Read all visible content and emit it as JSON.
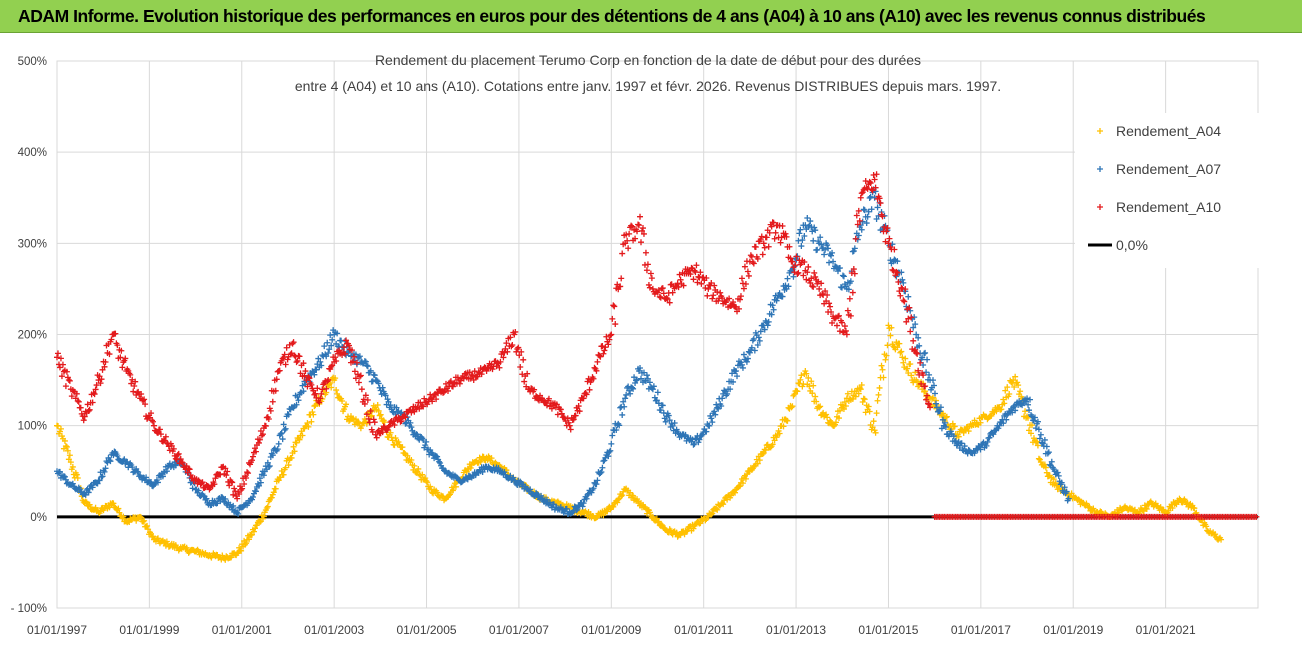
{
  "banner": {
    "title": "ADAM Informe. Evolution historique des performances en euros pour des détentions de 4 ans (A04) à 10 ans (A10) avec les revenus connus distribués"
  },
  "colors": {
    "banner_bg": "#92d050",
    "A04": "#ffc000",
    "A07": "#2e75b6",
    "A10": "#e31a1c",
    "zero_line": "#000000",
    "grid": "#d9d9d9"
  },
  "chart_data": {
    "type": "scatter",
    "title_line1": "Rendement du placement Terumo Corp en fonction de la date de début pour des durées",
    "title_line2": "entre 4 (A04) et 10 ans (A10). Cotations entre janv. 1997 et févr.  2026. Revenus DISTRIBUES depuis mars. 1997.",
    "xlabel": "",
    "ylabel": "",
    "xlim": [
      1997.0,
      2023.0
    ],
    "ylim": [
      -100,
      500
    ],
    "y_ticks": [
      -100,
      0,
      100,
      200,
      300,
      400,
      500
    ],
    "y_tick_labels": [
      "- 100%",
      "0%",
      "100%",
      "200%",
      "300%",
      "400%",
      "500%"
    ],
    "x_ticks": [
      1997,
      1999,
      2001,
      2003,
      2005,
      2007,
      2009,
      2011,
      2013,
      2015,
      2017,
      2019,
      2021
    ],
    "x_tick_labels": [
      "01/01/1997",
      "01/01/1999",
      "01/01/2001",
      "01/01/2003",
      "01/01/2005",
      "01/01/2007",
      "01/01/2009",
      "01/01/2011",
      "01/01/2013",
      "01/01/2015",
      "01/01/2017",
      "01/01/2019",
      "01/01/2021"
    ],
    "legend_position": "top-right",
    "legend": [
      {
        "key": "A04",
        "label": "Rendement_A04",
        "marker": "cross"
      },
      {
        "key": "A07",
        "label": "Rendement_A07",
        "marker": "cross"
      },
      {
        "key": "A10",
        "label": "Rendement_A10",
        "marker": "cross"
      },
      {
        "key": "zero",
        "label": "0,0%",
        "marker": "line"
      }
    ],
    "zero_line": {
      "label": "0,0%",
      "value": 0
    },
    "series": [
      {
        "name": "Rendement_A04",
        "key": "A04",
        "x": [
          1997.0,
          1997.3,
          1997.6,
          1997.9,
          1998.2,
          1998.5,
          1998.8,
          1999.1,
          1999.4,
          1999.7,
          2000.0,
          2000.3,
          2000.6,
          2000.9,
          2001.2,
          2001.5,
          2001.8,
          2002.1,
          2002.4,
          2002.7,
          2003.0,
          2003.3,
          2003.6,
          2003.9,
          2004.2,
          2004.5,
          2004.8,
          2005.1,
          2005.4,
          2005.7,
          2006.0,
          2006.3,
          2006.6,
          2006.9,
          2007.2,
          2007.5,
          2007.8,
          2008.1,
          2008.4,
          2008.7,
          2009.0,
          2009.3,
          2009.6,
          2009.9,
          2010.2,
          2010.5,
          2010.8,
          2011.1,
          2011.4,
          2011.7,
          2012.0,
          2012.3,
          2012.6,
          2012.9,
          2013.2,
          2013.5,
          2013.8,
          2014.1,
          2014.4,
          2014.7,
          2015.0,
          2015.3,
          2015.6,
          2015.9,
          2016.2,
          2016.5,
          2016.8,
          2017.1,
          2017.4,
          2017.7,
          2018.0,
          2018.3,
          2018.6,
          2018.9,
          2019.2,
          2019.5,
          2019.8,
          2020.1,
          2020.4,
          2020.7,
          2021.0,
          2021.3,
          2021.6,
          2021.9,
          2022.2
        ],
        "values": [
          100,
          60,
          15,
          5,
          15,
          -5,
          0,
          -25,
          -30,
          -35,
          -38,
          -42,
          -45,
          -40,
          -20,
          5,
          40,
          70,
          100,
          130,
          150,
          110,
          100,
          120,
          90,
          70,
          50,
          30,
          20,
          40,
          60,
          65,
          55,
          40,
          30,
          20,
          15,
          10,
          5,
          0,
          10,
          30,
          15,
          0,
          -15,
          -20,
          -10,
          0,
          15,
          30,
          50,
          70,
          90,
          120,
          160,
          120,
          100,
          130,
          140,
          95,
          210,
          175,
          150,
          130,
          110,
          90,
          100,
          110,
          120,
          150,
          110,
          60,
          35,
          25,
          15,
          5,
          0,
          10,
          5,
          15,
          5,
          20,
          10,
          -15,
          -25
        ]
      },
      {
        "name": "Rendement_A07",
        "key": "A07",
        "x": [
          1997.0,
          1997.3,
          1997.6,
          1997.9,
          1998.2,
          1998.5,
          1998.8,
          1999.1,
          1999.4,
          1999.7,
          2000.0,
          2000.3,
          2000.6,
          2000.9,
          2001.2,
          2001.5,
          2001.8,
          2002.1,
          2002.4,
          2002.7,
          2003.0,
          2003.3,
          2003.6,
          2003.9,
          2004.2,
          2004.5,
          2004.8,
          2005.1,
          2005.4,
          2005.7,
          2006.0,
          2006.3,
          2006.6,
          2006.9,
          2007.2,
          2007.5,
          2007.8,
          2008.1,
          2008.4,
          2008.7,
          2009.0,
          2009.3,
          2009.6,
          2009.9,
          2010.2,
          2010.5,
          2010.8,
          2011.1,
          2011.4,
          2011.7,
          2012.0,
          2012.3,
          2012.6,
          2012.9,
          2013.2,
          2013.5,
          2013.8,
          2014.1,
          2014.4,
          2014.7,
          2015.0,
          2015.3,
          2015.6,
          2015.9,
          2016.2,
          2016.5,
          2016.8,
          2017.1,
          2017.4,
          2017.7,
          2018.0,
          2018.3,
          2018.6,
          2018.9
        ],
        "values": [
          50,
          35,
          25,
          40,
          70,
          60,
          45,
          35,
          55,
          60,
          30,
          15,
          20,
          5,
          20,
          50,
          80,
          120,
          150,
          170,
          200,
          180,
          170,
          150,
          120,
          110,
          90,
          70,
          50,
          40,
          45,
          55,
          50,
          40,
          30,
          20,
          10,
          5,
          15,
          40,
          80,
          130,
          160,
          140,
          110,
          90,
          80,
          100,
          130,
          160,
          180,
          210,
          240,
          270,
          320,
          300,
          280,
          250,
          320,
          350,
          300,
          260,
          200,
          150,
          100,
          80,
          70,
          80,
          100,
          120,
          130,
          90,
          50,
          20
        ]
      },
      {
        "name": "Rendement_A10",
        "key": "A10",
        "x": [
          1997.0,
          1997.3,
          1997.6,
          1997.9,
          1998.2,
          1998.5,
          1998.8,
          1999.1,
          1999.4,
          1999.7,
          2000.0,
          2000.3,
          2000.6,
          2000.9,
          2001.2,
          2001.5,
          2001.8,
          2002.1,
          2002.4,
          2002.7,
          2003.0,
          2003.3,
          2003.6,
          2003.9,
          2004.2,
          2004.5,
          2004.8,
          2005.1,
          2005.4,
          2005.7,
          2006.0,
          2006.3,
          2006.6,
          2006.9,
          2007.2,
          2007.5,
          2007.8,
          2008.1,
          2008.4,
          2008.7,
          2009.0,
          2009.3,
          2009.6,
          2009.9,
          2010.2,
          2010.5,
          2010.8,
          2011.1,
          2011.4,
          2011.7,
          2012.0,
          2012.3,
          2012.6,
          2012.9,
          2013.2,
          2013.5,
          2013.8,
          2014.1,
          2014.4,
          2014.7,
          2015.0,
          2015.3,
          2015.6,
          2015.9
        ],
        "values": [
          175,
          140,
          110,
          150,
          200,
          160,
          130,
          100,
          80,
          60,
          40,
          30,
          55,
          20,
          60,
          100,
          160,
          190,
          150,
          130,
          170,
          190,
          140,
          90,
          100,
          110,
          120,
          130,
          140,
          150,
          155,
          160,
          170,
          200,
          140,
          130,
          120,
          100,
          130,
          170,
          200,
          300,
          320,
          250,
          240,
          260,
          270,
          250,
          240,
          230,
          280,
          300,
          320,
          280,
          270,
          250,
          220,
          200,
          350,
          370,
          300,
          250,
          180,
          120
        ]
      },
      {
        "name": "Rendement_A10 (zero period)",
        "key": "A10",
        "x_range": [
          2016.0,
          2023.0
        ],
        "values": [
          0
        ]
      }
    ]
  }
}
